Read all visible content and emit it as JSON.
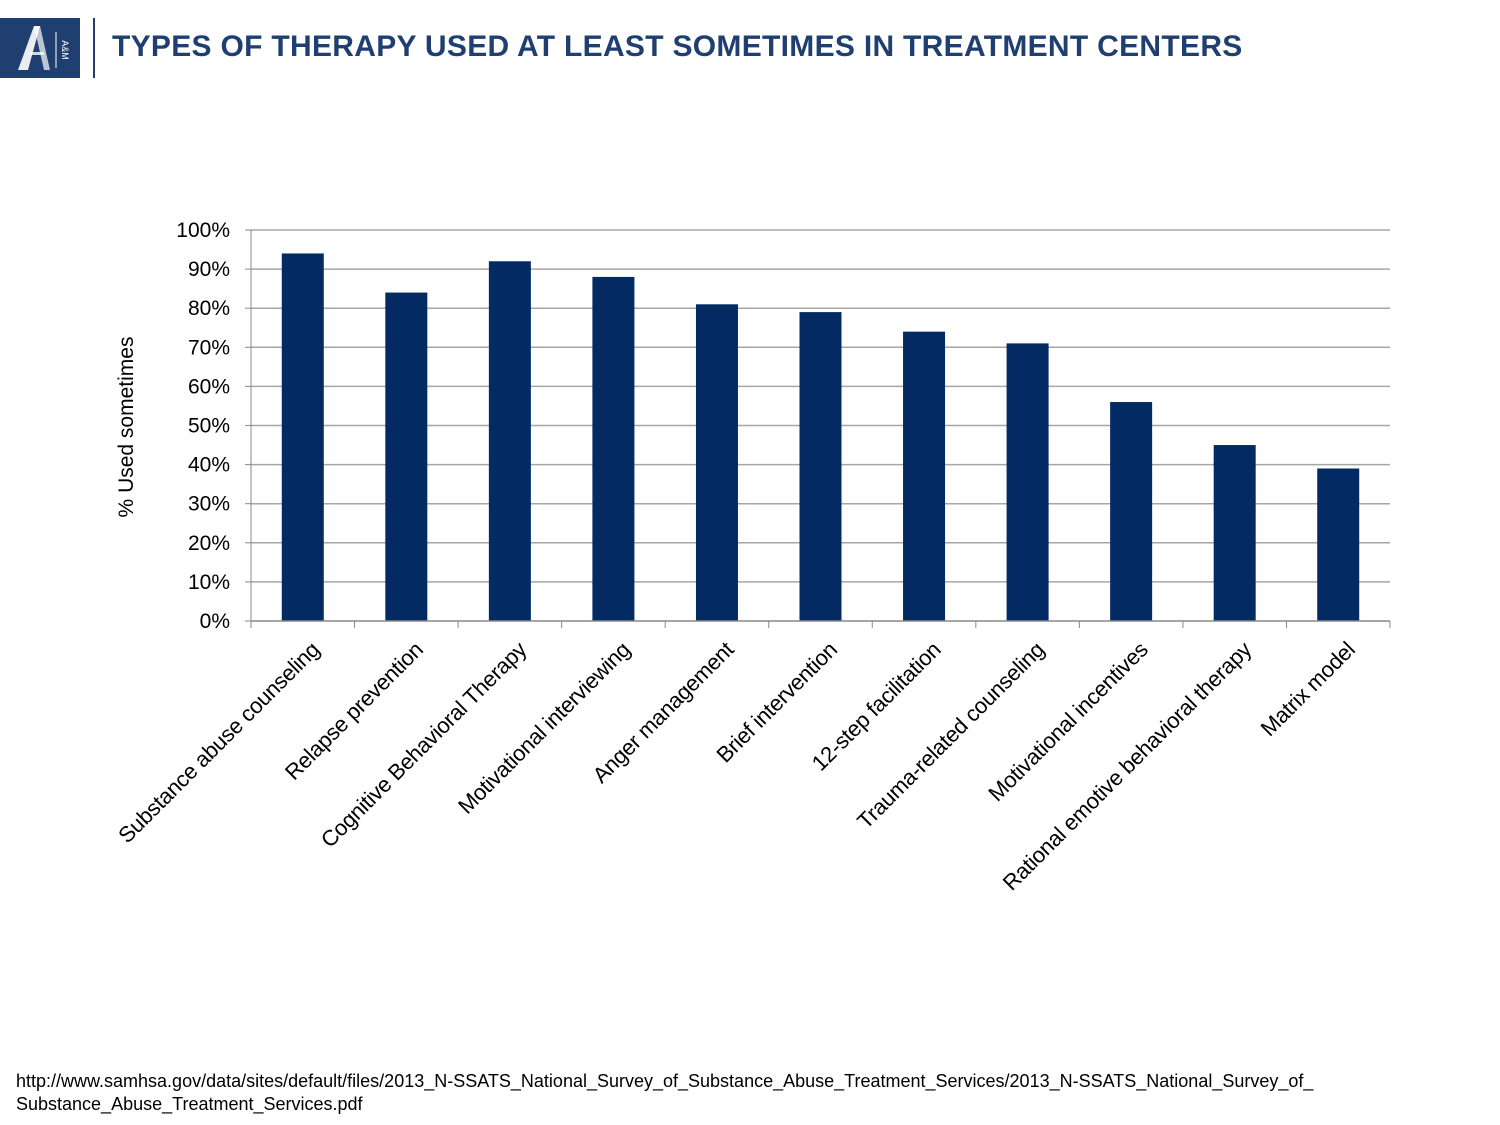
{
  "header": {
    "title": "TYPES OF THERAPY USED AT LEAST SOMETIMES IN TREATMENT CENTERS",
    "logo_text": "A&M"
  },
  "colors": {
    "bar": "#032a63",
    "header": "#1f3f70",
    "grid": "#a6a6a6"
  },
  "chart_data": {
    "type": "bar",
    "ylabel": "% Used sometimes",
    "ylim": [
      0,
      100
    ],
    "yticks": [
      0,
      10,
      20,
      30,
      40,
      50,
      60,
      70,
      80,
      90,
      100
    ],
    "ytick_labels": [
      "0%",
      "10%",
      "20%",
      "30%",
      "40%",
      "50%",
      "60%",
      "70%",
      "80%",
      "90%",
      "100%"
    ],
    "grid": true,
    "categories": [
      "Substance abuse counseling",
      "Relapse prevention",
      "Cognitive Behavioral Therapy",
      "Motivational interviewing",
      "Anger management",
      "Brief intervention",
      "12-step facilitation",
      "Trauma-related counseling",
      "Motivational incentives",
      "Rational emotive behavioral therapy",
      "Matrix model"
    ],
    "values": [
      94,
      84,
      92,
      88,
      81,
      79,
      74,
      71,
      56,
      45,
      39
    ]
  },
  "footer": {
    "source": "http://www.samhsa.gov/data/sites/default/files/2013_N-SSATS_National_Survey_of_Substance_Abuse_Treatment_Services/2013_N-SSATS_National_Survey_of_Substance_Abuse_Treatment_Services.pdf"
  }
}
